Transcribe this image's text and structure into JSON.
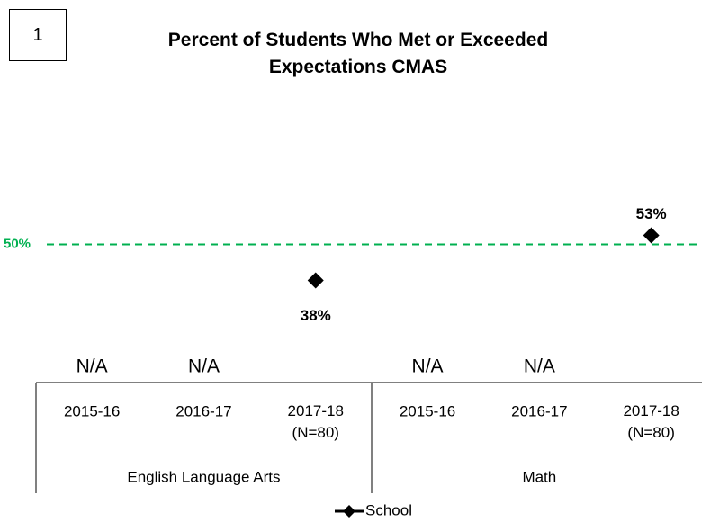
{
  "chart_data": {
    "type": "line",
    "chart_number": "1",
    "title": "Percent of Students Who Met or Exceeded Expectations CMAS",
    "categories": [
      "2015-16",
      "2016-17",
      "2017-18\n(N=80)",
      "2015-16",
      "2016-17",
      "2017-18\n(N=80)"
    ],
    "groups": [
      "English Language Arts",
      "Math"
    ],
    "series": [
      {
        "name": "School",
        "color": "#000000",
        "values": [
          null,
          null,
          38,
          null,
          null,
          53
        ],
        "value_labels": [
          "N/A",
          "N/A",
          "38%",
          "N/A",
          "N/A",
          "53%"
        ]
      }
    ],
    "reference_line": {
      "value": 50,
      "label": "50%",
      "color": "#00b050"
    },
    "ylim": [
      0,
      100
    ],
    "legend": "bottom"
  }
}
